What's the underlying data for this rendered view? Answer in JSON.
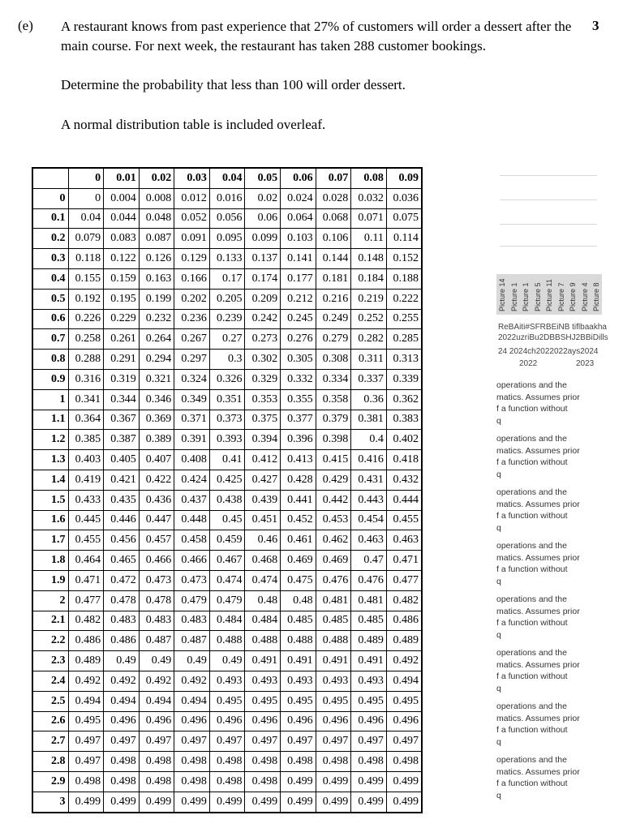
{
  "question": {
    "label": "(e)",
    "marks": "3",
    "paragraph_1": "A restaurant knows from past experience that 27% of customers will order a dessert after the main course. For next week, the restaurant has taken 288 customer bookings.",
    "paragraph_2": "Determine the probability that less than 100 will order dessert.",
    "paragraph_3": "A normal distribution table is included overleaf."
  },
  "ztable": {
    "column_headers": [
      "",
      "0",
      "0.01",
      "0.02",
      "0.03",
      "0.04",
      "0.05",
      "0.06",
      "0.07",
      "0.08",
      "0.09"
    ],
    "rows": [
      [
        "0",
        "0",
        "0.004",
        "0.008",
        "0.012",
        "0.016",
        "0.02",
        "0.024",
        "0.028",
        "0.032",
        "0.036"
      ],
      [
        "0.1",
        "0.04",
        "0.044",
        "0.048",
        "0.052",
        "0.056",
        "0.06",
        "0.064",
        "0.068",
        "0.071",
        "0.075"
      ],
      [
        "0.2",
        "0.079",
        "0.083",
        "0.087",
        "0.091",
        "0.095",
        "0.099",
        "0.103",
        "0.106",
        "0.11",
        "0.114"
      ],
      [
        "0.3",
        "0.118",
        "0.122",
        "0.126",
        "0.129",
        "0.133",
        "0.137",
        "0.141",
        "0.144",
        "0.148",
        "0.152"
      ],
      [
        "0.4",
        "0.155",
        "0.159",
        "0.163",
        "0.166",
        "0.17",
        "0.174",
        "0.177",
        "0.181",
        "0.184",
        "0.188"
      ],
      [
        "0.5",
        "0.192",
        "0.195",
        "0.199",
        "0.202",
        "0.205",
        "0.209",
        "0.212",
        "0.216",
        "0.219",
        "0.222"
      ],
      [
        "0.6",
        "0.226",
        "0.229",
        "0.232",
        "0.236",
        "0.239",
        "0.242",
        "0.245",
        "0.249",
        "0.252",
        "0.255"
      ],
      [
        "0.7",
        "0.258",
        "0.261",
        "0.264",
        "0.267",
        "0.27",
        "0.273",
        "0.276",
        "0.279",
        "0.282",
        "0.285"
      ],
      [
        "0.8",
        "0.288",
        "0.291",
        "0.294",
        "0.297",
        "0.3",
        "0.302",
        "0.305",
        "0.308",
        "0.311",
        "0.313"
      ],
      [
        "0.9",
        "0.316",
        "0.319",
        "0.321",
        "0.324",
        "0.326",
        "0.329",
        "0.332",
        "0.334",
        "0.337",
        "0.339"
      ],
      [
        "1",
        "0.341",
        "0.344",
        "0.346",
        "0.349",
        "0.351",
        "0.353",
        "0.355",
        "0.358",
        "0.36",
        "0.362"
      ],
      [
        "1.1",
        "0.364",
        "0.367",
        "0.369",
        "0.371",
        "0.373",
        "0.375",
        "0.377",
        "0.379",
        "0.381",
        "0.383"
      ],
      [
        "1.2",
        "0.385",
        "0.387",
        "0.389",
        "0.391",
        "0.393",
        "0.394",
        "0.396",
        "0.398",
        "0.4",
        "0.402"
      ],
      [
        "1.3",
        "0.403",
        "0.405",
        "0.407",
        "0.408",
        "0.41",
        "0.412",
        "0.413",
        "0.415",
        "0.416",
        "0.418"
      ],
      [
        "1.4",
        "0.419",
        "0.421",
        "0.422",
        "0.424",
        "0.425",
        "0.427",
        "0.428",
        "0.429",
        "0.431",
        "0.432"
      ],
      [
        "1.5",
        "0.433",
        "0.435",
        "0.436",
        "0.437",
        "0.438",
        "0.439",
        "0.441",
        "0.442",
        "0.443",
        "0.444"
      ],
      [
        "1.6",
        "0.445",
        "0.446",
        "0.447",
        "0.448",
        "0.45",
        "0.451",
        "0.452",
        "0.453",
        "0.454",
        "0.455"
      ],
      [
        "1.7",
        "0.455",
        "0.456",
        "0.457",
        "0.458",
        "0.459",
        "0.46",
        "0.461",
        "0.462",
        "0.463",
        "0.463"
      ],
      [
        "1.8",
        "0.464",
        "0.465",
        "0.466",
        "0.466",
        "0.467",
        "0.468",
        "0.469",
        "0.469",
        "0.47",
        "0.471"
      ],
      [
        "1.9",
        "0.471",
        "0.472",
        "0.473",
        "0.473",
        "0.474",
        "0.474",
        "0.475",
        "0.476",
        "0.476",
        "0.477"
      ],
      [
        "2",
        "0.477",
        "0.478",
        "0.478",
        "0.479",
        "0.479",
        "0.48",
        "0.48",
        "0.481",
        "0.481",
        "0.482"
      ],
      [
        "2.1",
        "0.482",
        "0.483",
        "0.483",
        "0.483",
        "0.484",
        "0.484",
        "0.485",
        "0.485",
        "0.485",
        "0.486"
      ],
      [
        "2.2",
        "0.486",
        "0.486",
        "0.487",
        "0.487",
        "0.488",
        "0.488",
        "0.488",
        "0.488",
        "0.489",
        "0.489"
      ],
      [
        "2.3",
        "0.489",
        "0.49",
        "0.49",
        "0.49",
        "0.49",
        "0.491",
        "0.491",
        "0.491",
        "0.491",
        "0.492"
      ],
      [
        "2.4",
        "0.492",
        "0.492",
        "0.492",
        "0.492",
        "0.493",
        "0.493",
        "0.493",
        "0.493",
        "0.493",
        "0.494"
      ],
      [
        "2.5",
        "0.494",
        "0.494",
        "0.494",
        "0.494",
        "0.495",
        "0.495",
        "0.495",
        "0.495",
        "0.495",
        "0.495"
      ],
      [
        "2.6",
        "0.495",
        "0.496",
        "0.496",
        "0.496",
        "0.496",
        "0.496",
        "0.496",
        "0.496",
        "0.496",
        "0.496"
      ],
      [
        "2.7",
        "0.497",
        "0.497",
        "0.497",
        "0.497",
        "0.497",
        "0.497",
        "0.497",
        "0.497",
        "0.497",
        "0.497"
      ],
      [
        "2.8",
        "0.497",
        "0.498",
        "0.498",
        "0.498",
        "0.498",
        "0.498",
        "0.498",
        "0.498",
        "0.498",
        "0.498"
      ],
      [
        "2.9",
        "0.498",
        "0.498",
        "0.498",
        "0.498",
        "0.498",
        "0.498",
        "0.499",
        "0.499",
        "0.499",
        "0.499"
      ],
      [
        "3",
        "0.499",
        "0.499",
        "0.499",
        "0.499",
        "0.499",
        "0.499",
        "0.499",
        "0.499",
        "0.499",
        "0.499"
      ]
    ]
  },
  "side_overlay": {
    "picture_labels": [
      "Picture 14",
      "Picture 1",
      "Picture 1",
      "Picture 5",
      "Picture 11",
      "Picture 7",
      "Picture 9",
      "Picture 4",
      "Picture 8"
    ],
    "legend_line_1": "ReBAiti#SFRBEiNB tiflbaakha",
    "legend_line_2": "2022uzriBu2DBBSHJ2BBiDills",
    "legend_line_3": "24  2024ch2022022ays2024",
    "year_left": "2022",
    "year_right": "2023",
    "snippet_line_1": "operations and the",
    "snippet_line_2": "matics. Assumes prior",
    "snippet_line_3": "f a function without",
    "snippet_line_4": "q"
  }
}
